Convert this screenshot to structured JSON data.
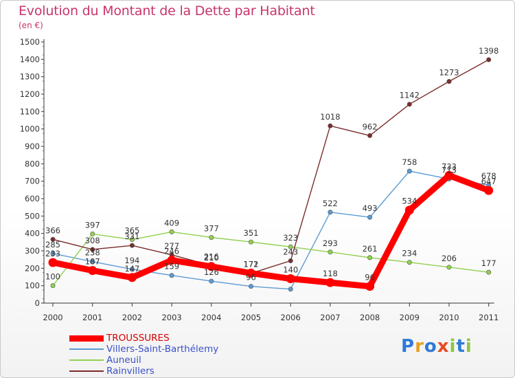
{
  "title": "Evolution du Montant de la Dette par Habitant",
  "subtitle": "(en €)",
  "logo": {
    "text": "Proxiti",
    "letter_colors": [
      "#2e7bd6",
      "#e8a020",
      "#2e7bd6",
      "#e84a20",
      "#8cc63f",
      "#2e7bd6",
      "#8cc63f"
    ]
  },
  "chart_data": {
    "type": "line",
    "title": "Evolution du Montant de la Dette par Habitant",
    "subtitle": "(en €)",
    "x": [
      "2000",
      "2001",
      "2002",
      "2003",
      "2004",
      "2005",
      "2006",
      "2007",
      "2008",
      "2009",
      "2010",
      "2011"
    ],
    "ylim": [
      0,
      1500
    ],
    "yticks": [
      0,
      100,
      200,
      300,
      400,
      500,
      600,
      700,
      800,
      900,
      1000,
      1100,
      1200,
      1300,
      1400,
      1500
    ],
    "grid": false,
    "legend_position": "bottom-left",
    "series": [
      {
        "name": "TROUSSURES",
        "color": "#ff0000",
        "emphasis": true,
        "values": [
          233,
          187,
          147,
          246,
          210,
          172,
          140,
          118,
          96,
          534,
          733,
          647
        ],
        "labels": [
          "233",
          "187",
          "147",
          "246",
          "210",
          "172",
          "140",
          "118",
          "96",
          "534",
          "733",
          "647"
        ]
      },
      {
        "name": "Villers-Saint-Barthélemy",
        "color": "#5b9bd5",
        "emphasis": false,
        "values": [
          285,
          238,
          194,
          159,
          126,
          96,
          80,
          522,
          493,
          758,
          713,
          678
        ],
        "labels": [
          "285",
          "238",
          "194",
          "159",
          "126",
          "96",
          "",
          "522",
          "493",
          "758",
          "713",
          "678"
        ]
      },
      {
        "name": "Auneuil",
        "color": "#92d050",
        "emphasis": false,
        "values": [
          100,
          397,
          365,
          409,
          377,
          351,
          323,
          293,
          261,
          234,
          206,
          177
        ],
        "labels": [
          "100",
          "397",
          "365",
          "409",
          "377",
          "351",
          "323",
          "293",
          "261",
          "234",
          "206",
          "177"
        ]
      },
      {
        "name": "Rainvillers",
        "color": "#7b2c2c",
        "emphasis": false,
        "values": [
          366,
          308,
          331,
          277,
          216,
          171,
          243,
          1018,
          962,
          1142,
          1273,
          1398
        ],
        "labels": [
          "366",
          "308",
          "331",
          "277",
          "216",
          "171",
          "243",
          "1018",
          "962",
          "1142",
          "1273",
          "1398"
        ]
      }
    ]
  }
}
